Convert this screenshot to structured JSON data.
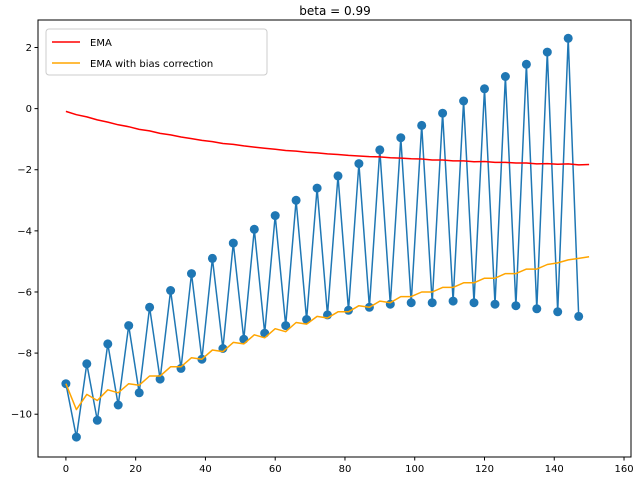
{
  "chart_data": {
    "type": "line",
    "title": "beta = 0.99",
    "xlabel": "",
    "ylabel": "",
    "xlim": [
      -8,
      162
    ],
    "ylim": [
      -11.4,
      2.9
    ],
    "xticks": [
      0,
      20,
      40,
      60,
      80,
      100,
      120,
      140,
      160
    ],
    "yticks": [
      -10,
      -8,
      -6,
      -4,
      -2,
      0,
      2
    ],
    "grid": false,
    "legend_position": "top-left",
    "observed": {
      "color": "#1f77b4",
      "x": [
        0,
        3,
        6,
        9,
        12,
        15,
        18,
        21,
        24,
        27,
        30,
        33,
        36,
        39,
        42,
        45,
        48,
        51,
        54,
        57,
        60,
        63,
        66,
        69,
        72,
        75,
        78,
        81,
        84,
        87,
        90,
        93,
        96,
        99,
        102,
        105,
        108,
        111,
        114,
        117,
        120,
        123,
        126,
        129,
        132,
        135,
        138,
        141,
        144,
        147,
        150,
        153
      ],
      "y": [
        -9.0,
        -10.75,
        -8.35,
        -10.2,
        -7.7,
        -9.7,
        -7.1,
        -9.3,
        -6.5,
        -8.85,
        -5.95,
        -8.5,
        -5.4,
        -8.2,
        -4.9,
        -7.85,
        -4.4,
        -7.55,
        -3.95,
        -7.35,
        -3.5,
        -7.1,
        -3.0,
        -6.9,
        -2.6,
        -6.75,
        -2.2,
        -6.6,
        -1.8,
        -6.5,
        -1.35,
        -6.4,
        -0.95,
        -6.35,
        -0.55,
        -6.35,
        -0.15,
        -6.3,
        0.25,
        -6.35,
        0.65,
        -6.4,
        1.05,
        -6.45,
        1.45,
        -6.55,
        1.85,
        -6.65,
        2.3,
        -6.8,
        null,
        null
      ]
    },
    "series": [
      {
        "name": "EMA",
        "color": "#ff0000",
        "x": [
          0,
          3,
          6,
          9,
          12,
          15,
          18,
          21,
          24,
          27,
          30,
          33,
          36,
          39,
          42,
          45,
          48,
          51,
          54,
          57,
          60,
          63,
          66,
          69,
          72,
          75,
          78,
          81,
          84,
          87,
          90,
          93,
          96,
          99,
          102,
          105,
          108,
          111,
          114,
          117,
          120,
          123,
          126,
          129,
          132,
          135,
          138,
          141,
          144,
          147,
          150
        ],
        "y": [
          -0.09,
          -0.2,
          -0.27,
          -0.37,
          -0.44,
          -0.53,
          -0.59,
          -0.68,
          -0.73,
          -0.81,
          -0.86,
          -0.93,
          -0.98,
          -1.04,
          -1.08,
          -1.14,
          -1.17,
          -1.22,
          -1.26,
          -1.3,
          -1.33,
          -1.37,
          -1.39,
          -1.43,
          -1.45,
          -1.48,
          -1.5,
          -1.53,
          -1.55,
          -1.57,
          -1.58,
          -1.61,
          -1.62,
          -1.64,
          -1.65,
          -1.68,
          -1.68,
          -1.71,
          -1.71,
          -1.74,
          -1.73,
          -1.76,
          -1.76,
          -1.78,
          -1.78,
          -1.81,
          -1.8,
          -1.82,
          -1.81,
          -1.84,
          -1.83
        ]
      },
      {
        "name": "EMA with bias correction",
        "color": "#ffa500",
        "x": [
          0,
          3,
          6,
          9,
          12,
          15,
          18,
          21,
          24,
          27,
          30,
          33,
          36,
          39,
          42,
          45,
          48,
          51,
          54,
          57,
          60,
          63,
          66,
          69,
          72,
          75,
          78,
          81,
          84,
          87,
          90,
          93,
          96,
          99,
          102,
          105,
          108,
          111,
          114,
          117,
          120,
          123,
          126,
          129,
          132,
          135,
          138,
          141,
          144,
          147,
          150
        ],
        "y": [
          -9.0,
          -9.85,
          -9.35,
          -9.55,
          -9.2,
          -9.3,
          -9.0,
          -9.05,
          -8.75,
          -8.75,
          -8.45,
          -8.45,
          -8.15,
          -8.2,
          -7.9,
          -7.95,
          -7.65,
          -7.7,
          -7.4,
          -7.5,
          -7.2,
          -7.3,
          -7.0,
          -7.05,
          -6.8,
          -6.85,
          -6.65,
          -6.65,
          -6.45,
          -6.5,
          -6.3,
          -6.35,
          -6.15,
          -6.15,
          -6.0,
          -6.0,
          -5.85,
          -5.85,
          -5.7,
          -5.7,
          -5.55,
          -5.55,
          -5.4,
          -5.4,
          -5.25,
          -5.25,
          -5.1,
          -5.05,
          -4.95,
          -4.9,
          -4.85
        ]
      }
    ]
  }
}
